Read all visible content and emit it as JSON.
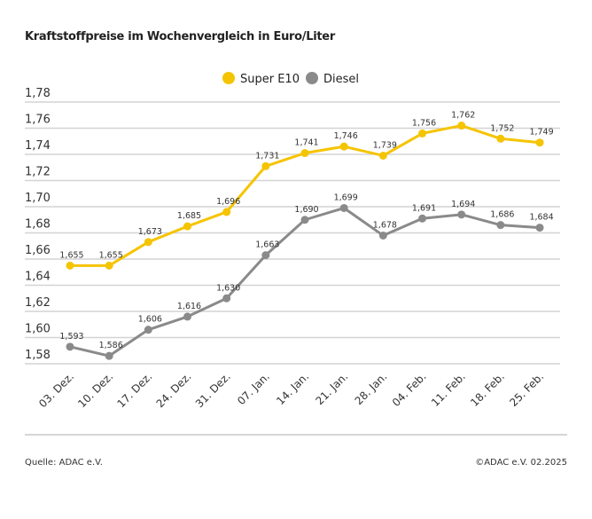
{
  "title": "Kraftstoffpreise im Wochenvergleich in Euro/Liter",
  "source": "Quelle: ADAC e.V.",
  "copyright": "©ADAC e.V. 02.2025",
  "chart_data": {
    "type": "line",
    "title": "Kraftstoffpreise im Wochenvergleich in Euro/Liter",
    "categories": [
      "03. Dez.",
      "10. Dez.",
      "17. Dez.",
      "24. Dez.",
      "31. Dez.",
      "07. Jan.",
      "14. Jan.",
      "21. Jan.",
      "28. Jan.",
      "04. Feb.",
      "11. Feb.",
      "18. Feb.",
      "25. Feb."
    ],
    "series": [
      {
        "name": "Super E10",
        "color": "#f5c400",
        "values": [
          1.655,
          1.655,
          1.673,
          1.685,
          1.696,
          1.731,
          1.741,
          1.746,
          1.739,
          1.756,
          1.762,
          1.752,
          1.749
        ],
        "labels": [
          "1,655",
          "1,655",
          "1,673",
          "1,685",
          "1,696",
          "1,731",
          "1,741",
          "1,746",
          "1,739",
          "1,756",
          "1,762",
          "1,752",
          "1,749"
        ]
      },
      {
        "name": "Diesel",
        "color": "#8a8a8a",
        "values": [
          1.593,
          1.586,
          1.606,
          1.616,
          1.63,
          1.663,
          1.69,
          1.699,
          1.678,
          1.691,
          1.694,
          1.686,
          1.684
        ],
        "labels": [
          "1,593",
          "1,586",
          "1,606",
          "1,616",
          "1,630",
          "1,663",
          "1,690",
          "1,699",
          "1,678",
          "1,691",
          "1,694",
          "1,686",
          "1,684"
        ]
      }
    ],
    "ylim": [
      1.58,
      1.78
    ],
    "yticks": [
      1.58,
      1.6,
      1.62,
      1.64,
      1.66,
      1.68,
      1.7,
      1.72,
      1.74,
      1.76,
      1.78
    ],
    "ytick_labels": [
      "1,58",
      "1,60",
      "1,62",
      "1,64",
      "1,66",
      "1,68",
      "1,70",
      "1,72",
      "1,74",
      "1,76",
      "1,78"
    ],
    "grid": true,
    "legend": "top-center"
  }
}
